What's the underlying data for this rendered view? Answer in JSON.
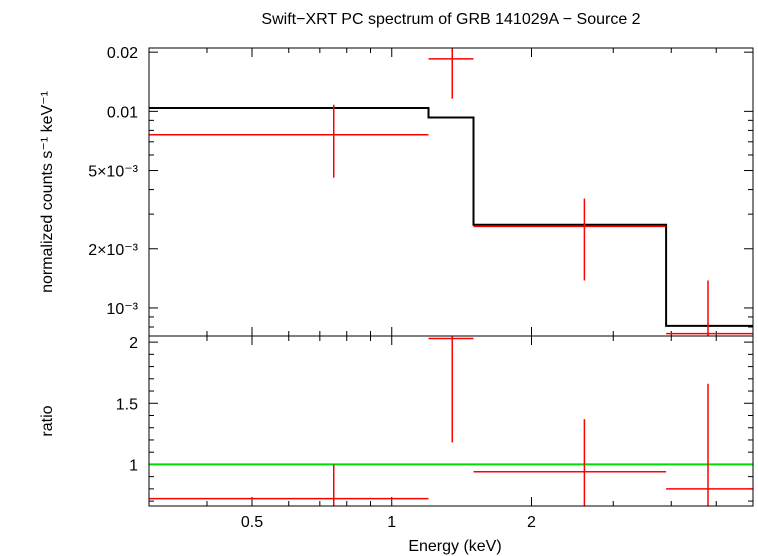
{
  "chart_data": [
    {
      "panel": "top",
      "type": "step-with-errorbars",
      "title": "Swift−XRT PC spectrum of GRB 141029A − Source 2",
      "ylabel": "normalized counts s⁻¹ keV⁻¹",
      "yscale": "log",
      "xscale": "log",
      "xlim": [
        0.3,
        6.0
      ],
      "ylim": [
        0.00072,
        0.021
      ],
      "y_ticks": [
        {
          "value": 0.02,
          "label": "0.02"
        },
        {
          "value": 0.01,
          "label": "0.01"
        },
        {
          "value": 0.005,
          "label": "5×10⁻³"
        },
        {
          "value": 0.002,
          "label": "2×10⁻³"
        },
        {
          "value": 0.001,
          "label": "10⁻³"
        }
      ],
      "model": {
        "name": "model",
        "color": "#000000",
        "edges": [
          0.3,
          1.2,
          1.3,
          1.5,
          3.9,
          6.0
        ],
        "values": [
          0.0104,
          0.0093,
          0.0093,
          0.00265,
          0.00081
        ]
      },
      "data": {
        "name": "data",
        "color": "#ff0000",
        "points": [
          {
            "x": 0.75,
            "xlo": 0.3,
            "xhi": 1.2,
            "y": 0.0076,
            "ylo": 0.0046,
            "yhi": 0.0108
          },
          {
            "x": 1.35,
            "xlo": 1.2,
            "xhi": 1.5,
            "y": 0.0185,
            "ylo": 0.0116,
            "yhi": 0.0215
          },
          {
            "x": 2.6,
            "xlo": 1.5,
            "xhi": 3.9,
            "y": 0.0026,
            "ylo": 0.00138,
            "yhi": 0.0036
          },
          {
            "x": 4.8,
            "xlo": 3.9,
            "xhi": 6.0,
            "y": 0.00074,
            "ylo": 0.0003,
            "yhi": 0.00138
          }
        ]
      }
    },
    {
      "panel": "bottom",
      "type": "errorbars",
      "ylabel": "ratio",
      "xlabel": "Energy (keV)",
      "xscale": "log",
      "xlim": [
        0.3,
        6.0
      ],
      "ylim": [
        0.66,
        2.05
      ],
      "x_ticks": [
        {
          "value": 0.5,
          "label": "0.5"
        },
        {
          "value": 1,
          "label": "1"
        },
        {
          "value": 2,
          "label": "2"
        }
      ],
      "y_ticks": [
        {
          "value": 2,
          "label": "2"
        },
        {
          "value": 1.5,
          "label": "1.5"
        },
        {
          "value": 1,
          "label": "1"
        }
      ],
      "reference_line": {
        "value": 1,
        "color": "#00dd00"
      },
      "data": {
        "name": "ratio",
        "color": "#ff0000",
        "points": [
          {
            "x": 0.75,
            "xlo": 0.3,
            "xhi": 1.2,
            "y": 0.72,
            "ylo": 0.6,
            "yhi": 1.0
          },
          {
            "x": 1.35,
            "xlo": 1.2,
            "xhi": 1.5,
            "y": 2.03,
            "ylo": 1.18,
            "yhi": 2.1
          },
          {
            "x": 2.6,
            "xlo": 1.5,
            "xhi": 3.9,
            "y": 0.94,
            "ylo": 0.6,
            "yhi": 1.37
          },
          {
            "x": 4.8,
            "xlo": 3.9,
            "xhi": 6.0,
            "y": 0.8,
            "ylo": 0.6,
            "yhi": 1.66
          }
        ]
      }
    }
  ]
}
